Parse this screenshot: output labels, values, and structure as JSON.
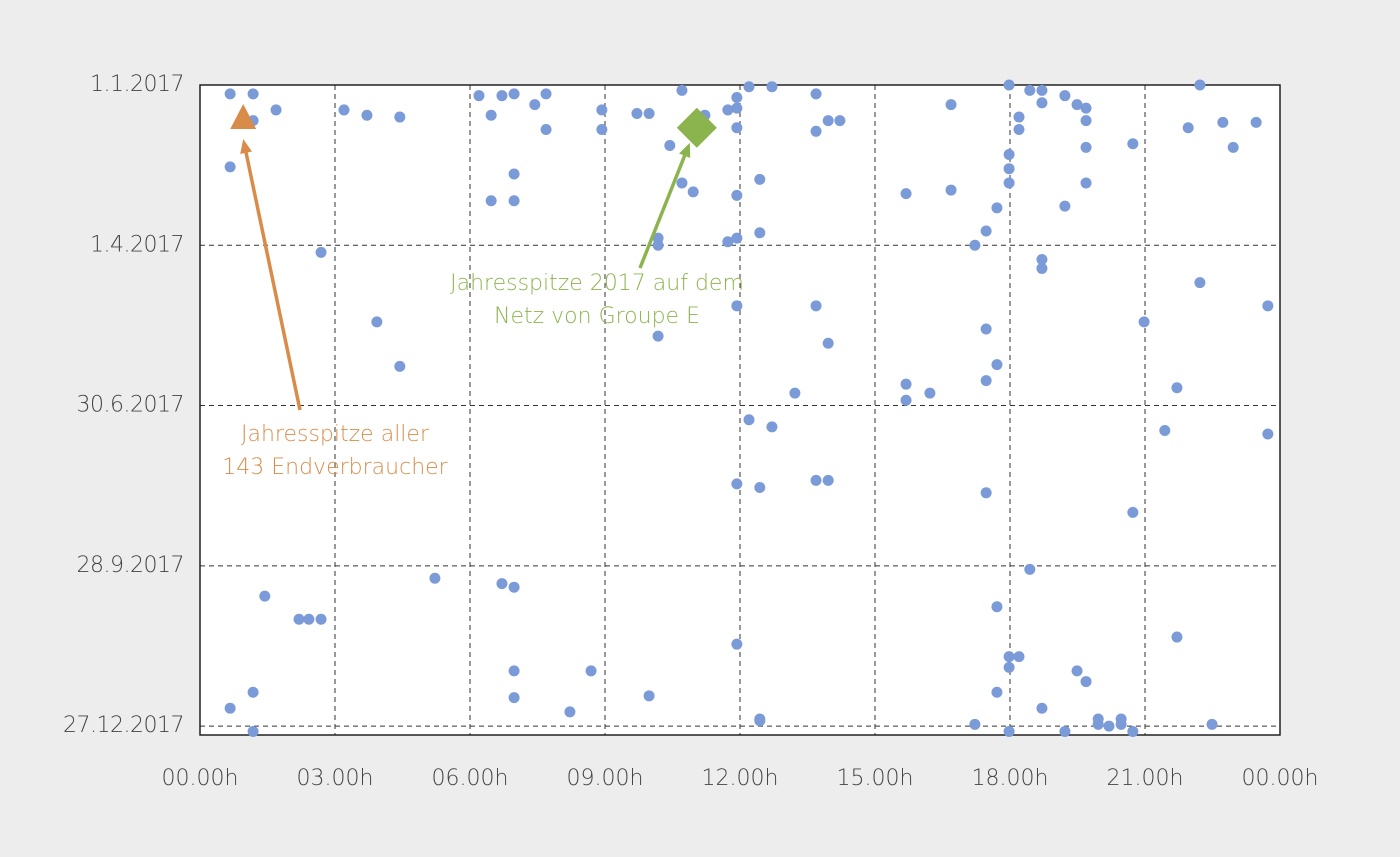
{
  "chart_data": {
    "type": "scatter",
    "color": "#7b9bd8",
    "grid": true,
    "xlim": [
      0,
      24
    ],
    "xticks": [
      {
        "value": 0,
        "label": "00.00h"
      },
      {
        "value": 3,
        "label": "03.00h"
      },
      {
        "value": 6,
        "label": "06.00h"
      },
      {
        "value": 9,
        "label": "09.00h"
      },
      {
        "value": 12,
        "label": "12.00h"
      },
      {
        "value": 15,
        "label": "15.00h"
      },
      {
        "value": 18,
        "label": "18.00h"
      },
      {
        "value": 21,
        "label": "21.00h"
      },
      {
        "value": 24,
        "label": "00.00h"
      }
    ],
    "ylim": [
      365,
      0
    ],
    "yticks": [
      {
        "value": 0,
        "label": "1.1.2017"
      },
      {
        "value": 90,
        "label": "1.4.2017"
      },
      {
        "value": 180,
        "label": "30.6.2017"
      },
      {
        "value": 270,
        "label": "28.9.2017"
      },
      {
        "value": 360,
        "label": "27.12.2017"
      }
    ],
    "x": [
      0.67,
      1.18,
      1.69,
      1.18,
      0.67,
      2.69,
      3.2,
      3.71,
      4.44,
      3.93,
      4.44,
      5.22,
      1.44,
      2.2,
      2.42,
      2.69,
      0.67,
      1.18,
      1.18,
      6.2,
      6.47,
      6.71,
      6.98,
      7.44,
      7.69,
      7.69,
      6.98,
      6.47,
      6.98,
      6.71,
      6.98,
      6.98,
      6.98,
      8.22,
      8.69,
      8.93,
      8.93,
      9.71,
      9.98,
      9.98,
      10.44,
      10.71,
      10.71,
      10.96,
      10.18,
      10.18,
      10.18,
      11.22,
      11.73,
      11.93,
      11.93,
      11.93,
      11.93,
      11.73,
      11.93,
      11.93,
      11.93,
      11.93,
      12.2,
      12.2,
      12.44,
      12.44,
      12.44,
      12.44,
      12.44,
      12.71,
      12.71,
      13.22,
      13.69,
      13.69,
      13.69,
      13.69,
      13.96,
      14.22,
      13.96,
      13.96,
      15.69,
      15.69,
      15.69,
      16.22,
      16.69,
      16.69,
      17.22,
      17.22,
      17.47,
      17.47,
      17.47,
      17.47,
      17.71,
      17.71,
      17.71,
      17.71,
      17.98,
      17.98,
      17.98,
      17.98,
      17.98,
      17.98,
      17.98,
      18.2,
      18.2,
      18.2,
      18.44,
      18.44,
      18.71,
      18.71,
      18.71,
      18.71,
      18.71,
      19.22,
      19.22,
      19.22,
      19.49,
      19.49,
      19.69,
      19.69,
      19.69,
      19.69,
      19.69,
      19.96,
      19.96,
      20.2,
      20.47,
      20.47,
      20.73,
      20.73,
      20.73,
      20.98,
      21.44,
      21.71,
      21.71,
      21.96,
      22.22,
      22.22,
      22.49,
      22.73,
      22.96,
      23.47,
      23.73,
      23.73
    ],
    "values": [
      5,
      5,
      14,
      20,
      46,
      94,
      14,
      17,
      18,
      133,
      158,
      277,
      287,
      300,
      300,
      300,
      350,
      341,
      363,
      6,
      17,
      6,
      5,
      11,
      5,
      25,
      50,
      65,
      65,
      280,
      282,
      329,
      344,
      352,
      329,
      14,
      25,
      16,
      16,
      343,
      34,
      3,
      55,
      60,
      86,
      90,
      141,
      17,
      14,
      13,
      7,
      24,
      62,
      88,
      86,
      124,
      224,
      314,
      1,
      188,
      53,
      83,
      226,
      356,
      357,
      1,
      192,
      173,
      5,
      26,
      124,
      222,
      20,
      20,
      145,
      222,
      61,
      168,
      177,
      173,
      11,
      59,
      90,
      359,
      82,
      137,
      166,
      229,
      69,
      157,
      293,
      341,
      0,
      39,
      47,
      55,
      321,
      327,
      363,
      18,
      25,
      321,
      3,
      272,
      3,
      10,
      98,
      103,
      350,
      6,
      68,
      363,
      11,
      329,
      13,
      20,
      35,
      55,
      335,
      356,
      359,
      360,
      356,
      359,
      33,
      240,
      363,
      133,
      194,
      170,
      310,
      24,
      0,
      111,
      359,
      21,
      35,
      21,
      124,
      196
    ],
    "annotations": [
      {
        "lines": [
          "Jahresspitze aller",
          "143 Endverbraucher"
        ],
        "x": 0.96,
        "y": 18,
        "color": "#d98c4a",
        "marker": "triangle"
      },
      {
        "lines": [
          "Jahresspitze 2017 auf dem",
          "Netz von Groupe E"
        ],
        "x": 11.04,
        "y": 24,
        "color": "#8bb44e",
        "marker": "diamond"
      }
    ]
  }
}
